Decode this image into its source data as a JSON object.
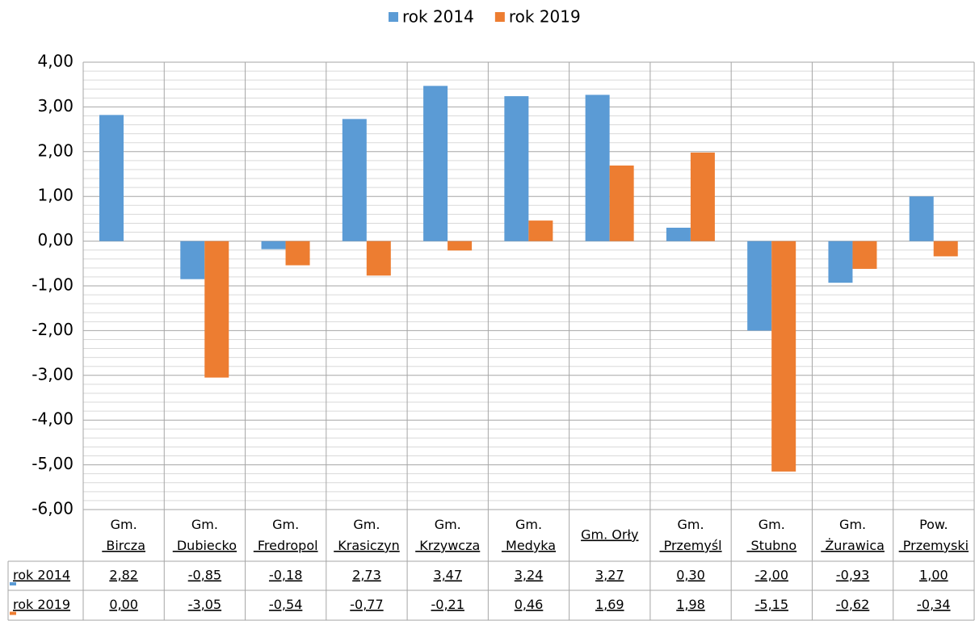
{
  "chart_data": {
    "type": "bar",
    "categories": [
      "Gm. Bircza",
      "Gm. Dubiecko",
      "Gm. Fredropol",
      "Gm. Krasiczyn",
      "Gm. Krzywcza",
      "Gm. Medyka",
      "Gm. Orły",
      "Gm. Przemyśl",
      "Gm. Stubno",
      "Gm. Żurawica",
      "Pow. Przemyski"
    ],
    "series": [
      {
        "name": "rok 2014",
        "color": "#5b9bd5",
        "values": [
          2.82,
          -0.85,
          -0.18,
          2.73,
          3.47,
          3.24,
          3.27,
          0.3,
          -2.0,
          -0.93,
          1.0
        ],
        "value_labels": [
          "2,82",
          "-0,85",
          "-0,18",
          "2,73",
          "3,47",
          "3,24",
          "3,27",
          "0,30",
          "-2,00",
          "-0,93",
          "1,00"
        ]
      },
      {
        "name": "rok 2019",
        "color": "#ed7d31",
        "values": [
          0.0,
          -3.05,
          -0.54,
          -0.77,
          -0.21,
          0.46,
          1.69,
          1.98,
          -5.15,
          -0.62,
          -0.34
        ],
        "value_labels": [
          "0,00",
          "-3,05",
          "-0,54",
          "-0,77",
          "-0,21",
          "0,46",
          "1,69",
          "1,98",
          "-5,15",
          "-0,62",
          "-0,34"
        ]
      }
    ],
    "ylim": [
      -6,
      4
    ],
    "yticks": [
      {
        "value": -6,
        "label": "-6,00"
      },
      {
        "value": -5,
        "label": "-5,00"
      },
      {
        "value": -4,
        "label": "-4,00"
      },
      {
        "value": -3,
        "label": "-3,00"
      },
      {
        "value": -2,
        "label": "-2,00"
      },
      {
        "value": -1,
        "label": "-1,00"
      },
      {
        "value": 0,
        "label": "0,00"
      },
      {
        "value": 1,
        "label": "1,00"
      },
      {
        "value": 2,
        "label": "2,00"
      },
      {
        "value": 3,
        "label": "3,00"
      },
      {
        "value": 4,
        "label": "4,00"
      }
    ],
    "grid": true,
    "minor_grid": true,
    "legend": "top",
    "data_table": true
  }
}
